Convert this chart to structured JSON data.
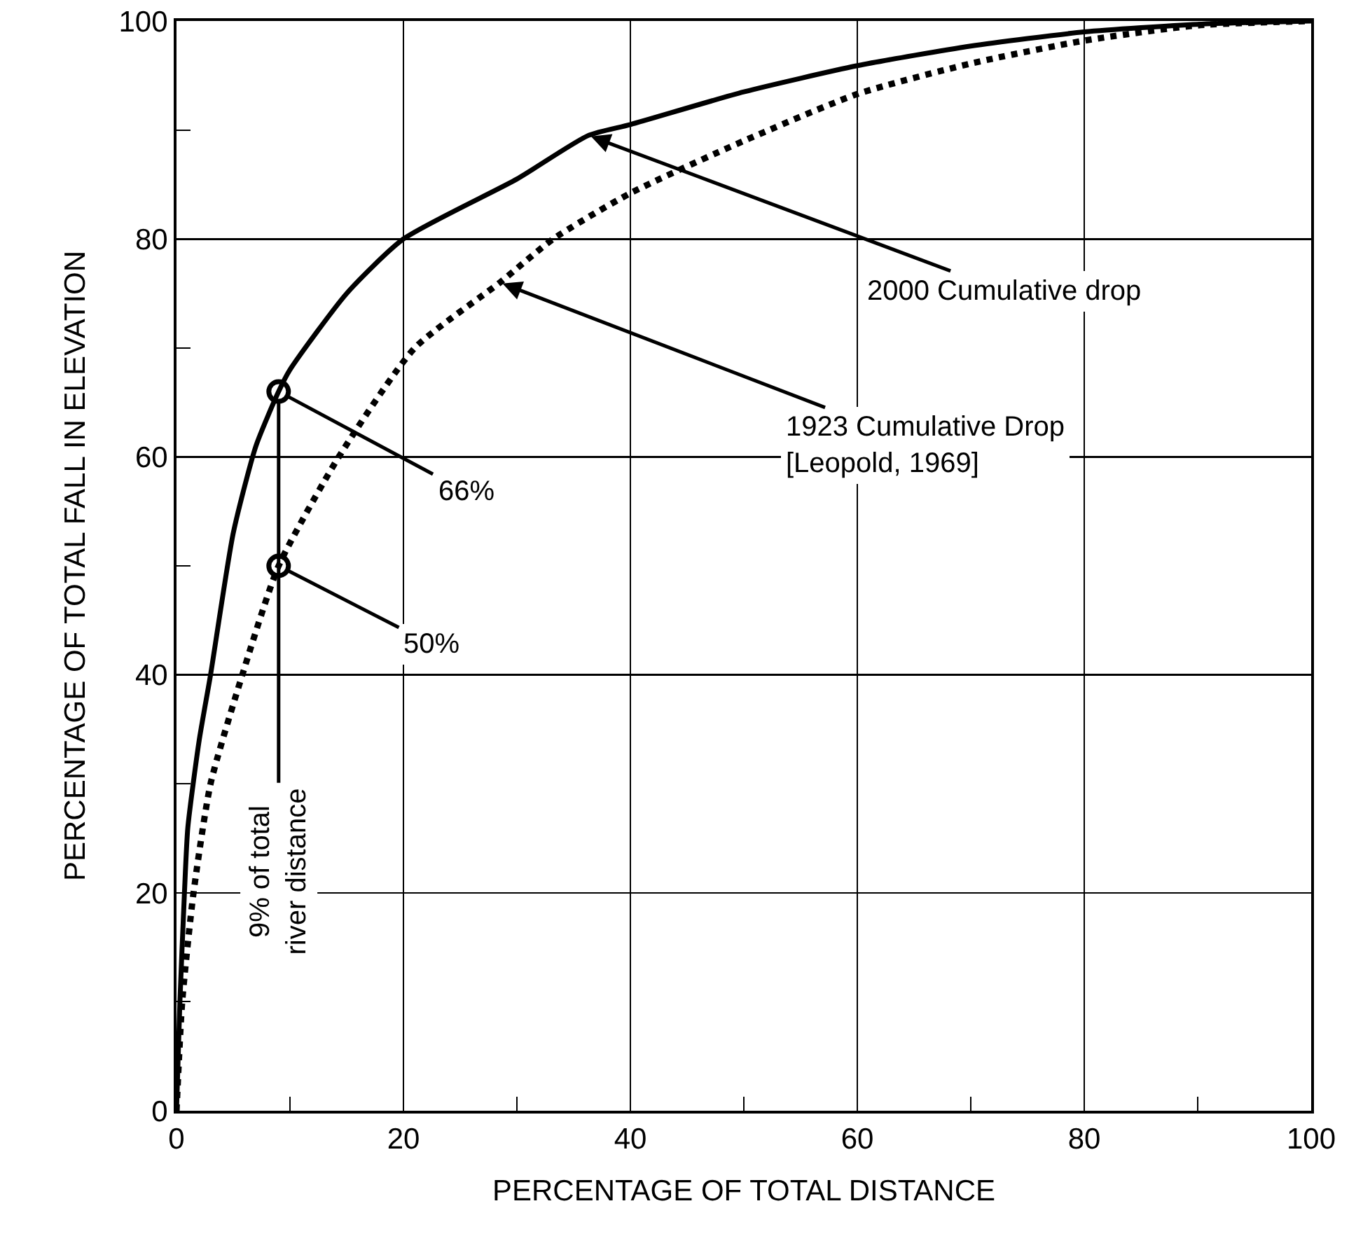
{
  "chart_data": {
    "type": "line",
    "xlabel": "PERCENTAGE OF TOTAL DISTANCE",
    "ylabel": "PERCENTAGE OF TOTAL FALL IN ELEVATION",
    "xlim": [
      0,
      100
    ],
    "ylim": [
      0,
      100
    ],
    "xticks": [
      0,
      20,
      40,
      60,
      80,
      100
    ],
    "yticks": [
      0,
      20,
      40,
      60,
      80,
      100
    ],
    "grid": true,
    "series": [
      {
        "color": "#000000",
        "line_style": "solid",
        "marker": "none",
        "x": [
          0,
          0.3,
          0.7,
          1,
          2,
          3,
          5,
          7,
          9,
          10,
          15,
          20,
          30,
          36.3,
          40,
          50,
          60,
          70,
          80,
          90,
          100
        ],
        "values": [
          0,
          10,
          20,
          26,
          34,
          40,
          53,
          61,
          66,
          68,
          75,
          80,
          85.5,
          89.5,
          90.5,
          93.5,
          95.9,
          97.7,
          99,
          99.7,
          100
        ]
      },
      {
        "color": "#000000",
        "line_style": "dotted",
        "marker": "none",
        "x": [
          0,
          0.5,
          1.5,
          3,
          5.8,
          9,
          14.3,
          21,
          28.5,
          33.2,
          40,
          50,
          60,
          70,
          80,
          90,
          100
        ],
        "values": [
          0,
          10,
          20,
          30,
          40,
          50,
          60,
          70,
          76,
          80,
          84.2,
          89,
          93.3,
          96.1,
          98.2,
          99.6,
          100
        ]
      },
      {
        "type": "scatter",
        "color": "#000000",
        "marker": "circle",
        "x": [
          9,
          9
        ],
        "values": [
          66,
          50
        ]
      }
    ],
    "annotations": [
      {
        "text": "2000 Cumulative drop",
        "x": 36.3,
        "y": 89.5
      },
      {
        "text": "1923 Cumulative Drop\n[Leopold, 1969]",
        "x": 28.5,
        "y": 76
      },
      {
        "text": "66%",
        "x": 9,
        "y": 66
      },
      {
        "text": "50%",
        "x": 9,
        "y": 50
      },
      {
        "text": "9% of total\nriver distance",
        "x": 9,
        "y": 66
      }
    ]
  }
}
